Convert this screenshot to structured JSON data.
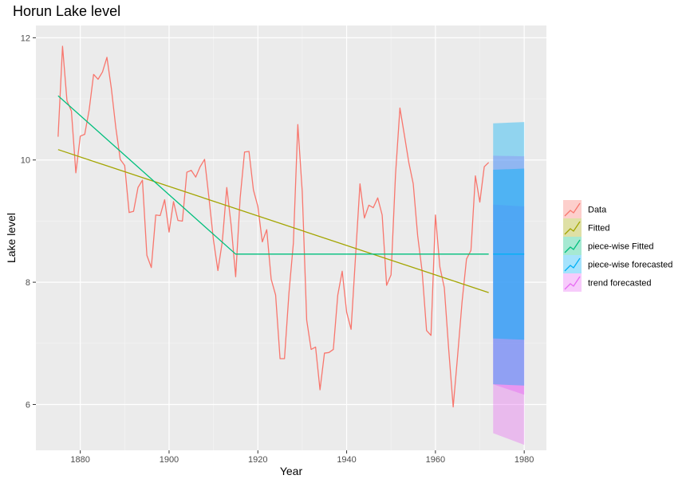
{
  "chart_data": {
    "type": "line",
    "title": "Horun Lake level",
    "xlabel": "Year",
    "ylabel": "Lake level",
    "xlim": [
      1870,
      1985
    ],
    "ylim": [
      5.25,
      12.2
    ],
    "x_ticks": [
      1880,
      1900,
      1920,
      1940,
      1960,
      1980
    ],
    "y_ticks": [
      6,
      8,
      10,
      12
    ],
    "grid": true,
    "legend_position": "right",
    "series": [
      {
        "name": "Data",
        "color": "#F8766D",
        "x": [
          1875,
          1876,
          1877,
          1878,
          1879,
          1880,
          1881,
          1882,
          1883,
          1884,
          1885,
          1886,
          1887,
          1888,
          1889,
          1890,
          1891,
          1892,
          1893,
          1894,
          1895,
          1896,
          1897,
          1898,
          1899,
          1900,
          1901,
          1902,
          1903,
          1904,
          1905,
          1906,
          1907,
          1908,
          1909,
          1910,
          1911,
          1912,
          1913,
          1914,
          1915,
          1916,
          1917,
          1918,
          1919,
          1920,
          1921,
          1922,
          1923,
          1924,
          1925,
          1926,
          1927,
          1928,
          1929,
          1930,
          1931,
          1932,
          1933,
          1934,
          1935,
          1936,
          1937,
          1938,
          1939,
          1940,
          1941,
          1942,
          1943,
          1944,
          1945,
          1946,
          1947,
          1948,
          1949,
          1950,
          1951,
          1952,
          1953,
          1954,
          1955,
          1956,
          1957,
          1958,
          1959,
          1960,
          1961,
          1962,
          1963,
          1964,
          1965,
          1966,
          1967,
          1968,
          1969,
          1970,
          1971,
          1972
        ],
        "values": [
          10.38,
          11.86,
          10.97,
          10.8,
          9.79,
          10.39,
          10.42,
          10.82,
          11.4,
          11.32,
          11.44,
          11.68,
          11.17,
          10.53,
          10.01,
          9.91,
          9.14,
          9.16,
          9.55,
          9.67,
          8.44,
          8.24,
          9.1,
          9.09,
          9.35,
          8.82,
          9.32,
          9.01,
          9.0,
          9.8,
          9.83,
          9.72,
          9.89,
          10.01,
          9.37,
          8.69,
          8.19,
          8.67,
          9.55,
          8.92,
          8.09,
          9.37,
          10.13,
          10.14,
          9.51,
          9.24,
          8.66,
          8.86,
          8.05,
          7.79,
          6.75,
          6.75,
          7.82,
          8.64,
          10.58,
          9.48,
          7.38,
          6.9,
          6.94,
          6.24,
          6.84,
          6.85,
          6.9,
          7.79,
          8.18,
          7.51,
          7.23,
          8.42,
          9.61,
          9.05,
          9.26,
          9.22,
          9.38,
          9.1,
          7.95,
          8.12,
          9.75,
          10.85,
          10.41,
          9.96,
          9.61,
          8.76,
          8.18,
          7.21,
          7.13,
          9.1,
          8.25,
          7.91,
          6.89,
          5.96,
          6.8,
          7.68,
          8.38,
          8.52,
          9.74,
          9.31,
          9.89,
          9.96
        ]
      },
      {
        "name": "Fitted",
        "color": "#A3A500",
        "x": [
          1875,
          1972
        ],
        "values": [
          10.17,
          7.83
        ]
      },
      {
        "name": "piece-wise Fitted",
        "color": "#00BF7D",
        "x": [
          1875,
          1915,
          1972
        ],
        "values": [
          11.05,
          8.46,
          8.46
        ]
      },
      {
        "name": "piece-wise forecasted",
        "color": "#00B0F6",
        "x": [
          1973,
          1980
        ],
        "values": [
          8.46,
          8.46
        ],
        "lower_80": [
          7.08,
          7.06
        ],
        "upper_80": [
          9.84,
          9.86
        ],
        "lower_95": [
          6.33,
          6.31
        ],
        "upper_95": [
          10.6,
          10.62
        ]
      },
      {
        "name": "trend forecasted",
        "color": "#E76BF3",
        "x": [
          1973,
          1980
        ],
        "values": [
          7.8,
          7.7
        ],
        "lower_80": [
          6.33,
          6.16
        ],
        "upper_80": [
          9.27,
          9.24
        ],
        "lower_95": [
          5.53,
          5.34
        ],
        "upper_95": [
          10.07,
          10.06
        ]
      }
    ]
  }
}
